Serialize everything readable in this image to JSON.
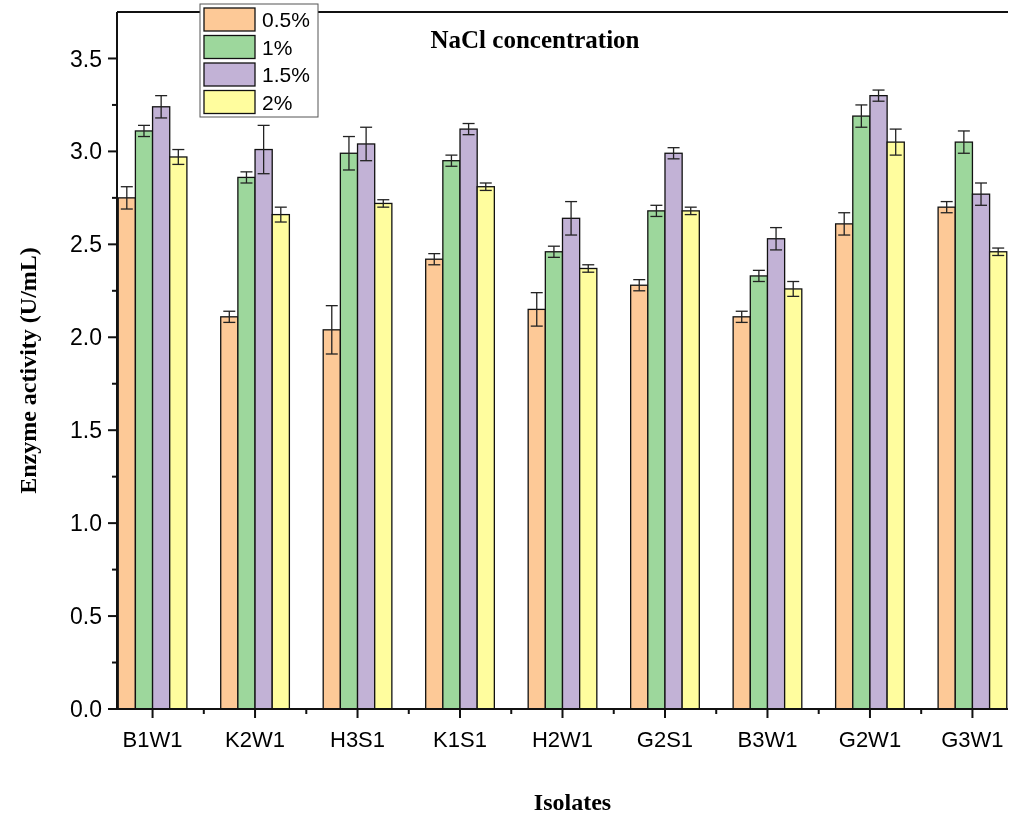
{
  "chart_data": {
    "type": "bar",
    "title": "NaCl concentration",
    "xlabel": "Isolates",
    "ylabel": "Enzyme activity (U/mL)",
    "categories": [
      "B1W1",
      "K2W1",
      "H3S1",
      "K1S1",
      "H2W1",
      "G2S1",
      "B3W1",
      "G2W1",
      "G3W1"
    ],
    "series": [
      {
        "name": "0.5%",
        "color": "#fdc997",
        "values": [
          2.75,
          2.11,
          2.04,
          2.42,
          2.15,
          2.28,
          2.11,
          2.61,
          2.7
        ],
        "errors": [
          0.06,
          0.03,
          0.13,
          0.03,
          0.09,
          0.03,
          0.03,
          0.06,
          0.03
        ]
      },
      {
        "name": "1%",
        "color": "#9dd79c",
        "values": [
          3.11,
          2.86,
          2.99,
          2.95,
          2.46,
          2.68,
          2.33,
          3.19,
          3.05
        ],
        "errors": [
          0.03,
          0.03,
          0.09,
          0.03,
          0.03,
          0.03,
          0.03,
          0.06,
          0.06
        ]
      },
      {
        "name": "1.5%",
        "color": "#c2b2d6",
        "values": [
          3.24,
          3.01,
          3.04,
          3.12,
          2.64,
          2.99,
          2.53,
          3.3,
          2.77
        ],
        "errors": [
          0.06,
          0.13,
          0.09,
          0.03,
          0.09,
          0.03,
          0.06,
          0.03,
          0.06
        ]
      },
      {
        "name": "2%",
        "color": "#fffd9e",
        "values": [
          2.97,
          2.66,
          2.72,
          2.81,
          2.37,
          2.68,
          2.26,
          3.05,
          2.46
        ],
        "errors": [
          0.04,
          0.04,
          0.02,
          0.02,
          0.02,
          0.02,
          0.04,
          0.07,
          0.02
        ]
      }
    ],
    "ylim": [
      0,
      3.75
    ],
    "yticks": [
      {
        "value": 0,
        "label": "0.0"
      },
      {
        "value": 0.25,
        "label": null
      },
      0.5,
      {
        "value": 0.75,
        "label": null
      },
      {
        "value": 1,
        "label": "1.0"
      },
      {
        "value": 1.25,
        "label": null
      },
      1.5,
      {
        "value": 1.75,
        "label": null
      },
      {
        "value": 2,
        "label": "2.0"
      },
      {
        "value": 2.25,
        "label": null
      },
      2.5,
      {
        "value": 2.75,
        "label": null
      },
      {
        "value": 3,
        "label": "3.0"
      },
      {
        "value": 3.25,
        "label": null
      },
      3.5
    ],
    "grid": false,
    "legend": "top left"
  }
}
